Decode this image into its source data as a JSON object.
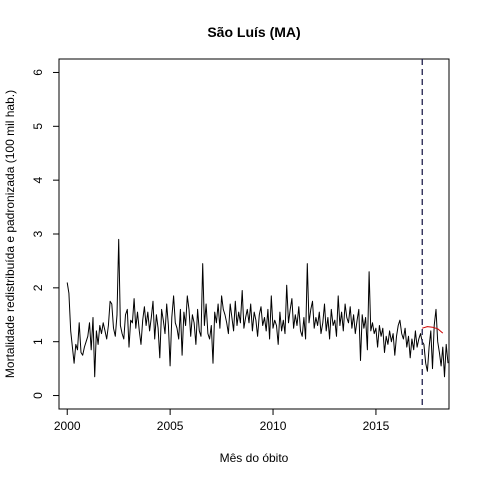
{
  "chart_data": {
    "type": "line",
    "title": "São Luís (MA)",
    "xlabel": "Mês do óbito",
    "ylabel": "Mortalidade redistribuída e padronizada (100 mil hab.)",
    "xlim": [
      1999.6,
      2018.55
    ],
    "ylim": [
      -0.25,
      6.25
    ],
    "x_ticks": [
      2000,
      2005,
      2010,
      2015
    ],
    "x_tick_labels": [
      "2000",
      "2005",
      "2010",
      "2015"
    ],
    "y_ticks": [
      0,
      1,
      2,
      3,
      4,
      5,
      6
    ],
    "y_tick_labels": [
      "0",
      "1",
      "2",
      "3",
      "4",
      "5",
      "6"
    ],
    "grid": false,
    "legend": "none",
    "vline": {
      "x": 2017.25,
      "style": "dashed",
      "color": "#1f1f4d"
    },
    "series": [
      {
        "style": "solid",
        "color": "#000000",
        "x_start": 2000.0,
        "x_step": 0.08333,
        "values": [
          2.1,
          1.9,
          1.2,
          0.9,
          0.6,
          0.95,
          0.85,
          1.35,
          0.8,
          0.75,
          0.9,
          1.0,
          1.1,
          1.35,
          0.85,
          1.45,
          0.35,
          1.2,
          0.95,
          1.3,
          1.15,
          1.35,
          1.2,
          1.05,
          1.3,
          1.75,
          1.7,
          1.25,
          1.1,
          1.5,
          2.9,
          1.3,
          1.15,
          1.05,
          1.5,
          1.6,
          0.9,
          1.4,
          1.35,
          1.8,
          1.25,
          1.55,
          1.2,
          0.95,
          1.4,
          1.65,
          1.3,
          1.55,
          1.2,
          1.45,
          1.75,
          1.05,
          1.5,
          1.25,
          0.7,
          1.6,
          1.4,
          1.15,
          1.7,
          1.3,
          0.55,
          1.45,
          1.85,
          1.35,
          1.25,
          1.05,
          1.6,
          0.75,
          1.55,
          1.3,
          1.85,
          1.6,
          1.1,
          1.5,
          1.35,
          0.95,
          1.6,
          1.2,
          1.1,
          2.45,
          1.3,
          1.7,
          1.15,
          1.05,
          1.3,
          0.6,
          1.55,
          1.35,
          1.7,
          1.25,
          1.85,
          1.6,
          1.5,
          1.35,
          1.15,
          1.7,
          1.45,
          1.2,
          1.75,
          1.3,
          1.55,
          1.35,
          1.95,
          1.25,
          1.45,
          1.6,
          1.35,
          1.7,
          1.2,
          1.55,
          1.4,
          1.1,
          1.5,
          1.65,
          1.3,
          1.45,
          1.2,
          1.6,
          1.05,
          1.85,
          1.25,
          1.4,
          1.3,
          0.95,
          1.55,
          1.2,
          1.4,
          1.15,
          2.05,
          1.35,
          1.6,
          1.8,
          1.25,
          1.5,
          1.3,
          1.65,
          1.2,
          1.1,
          1.45,
          1.05,
          2.45,
          1.35,
          1.6,
          1.75,
          1.25,
          1.45,
          1.3,
          1.55,
          1.15,
          1.35,
          1.7,
          1.2,
          1.45,
          1.05,
          1.6,
          1.3,
          1.4,
          1.1,
          1.85,
          1.3,
          1.55,
          1.2,
          1.7,
          1.45,
          1.35,
          1.65,
          1.25,
          1.5,
          1.15,
          1.4,
          1.6,
          0.65,
          1.5,
          1.25,
          1.45,
          0.85,
          2.3,
          1.2,
          1.35,
          1.15,
          1.25,
          0.9,
          1.3,
          1.1,
          1.25,
          0.8,
          1.1,
          0.95,
          1.2,
          1.0,
          1.15,
          0.75,
          1.1,
          1.3,
          1.4,
          1.15,
          1.05,
          1.25,
          0.9,
          1.1,
          0.7,
          1.05,
          0.85,
          1.2,
          0.9,
          1.05,
          1.15,
          1.0,
          0.95,
          0.6,
          0.45,
          0.9,
          1.2,
          0.5,
          1.3,
          1.6,
          1.0,
          0.8,
          0.55,
          0.9,
          0.35,
          0.95,
          0.6
        ]
      },
      {
        "style": "solid",
        "color": "#cc0000",
        "x": [
          2017.25,
          2017.5,
          2017.75,
          2018.0,
          2018.25
        ],
        "values": [
          1.25,
          1.28,
          1.27,
          1.24,
          1.16
        ]
      }
    ]
  }
}
